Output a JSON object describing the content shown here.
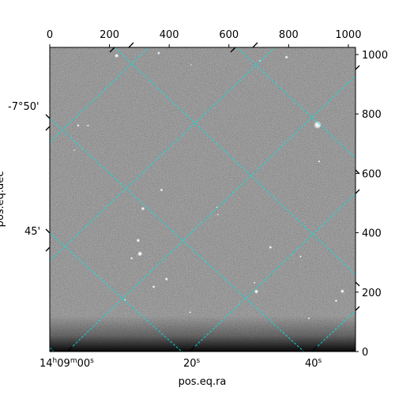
{
  "chart_data": {
    "type": "image",
    "colormap": "gray",
    "pixel_xlim": [
      0,
      1024
    ],
    "pixel_ylim": [
      0,
      1024
    ],
    "top_x_ticks": [
      0,
      200,
      400,
      600,
      800,
      1000
    ],
    "right_y_ticks": [
      0,
      200,
      400,
      600,
      800,
      1000
    ],
    "ra_tick_labels": [
      {
        "parts": [
          "14",
          "h",
          "09",
          "m",
          "00",
          "s"
        ]
      },
      {
        "parts": [
          "20",
          "s"
        ]
      },
      {
        "parts": [
          "40",
          "s"
        ]
      }
    ],
    "dec_tick_labels": [
      "-7°50'",
      "45'"
    ],
    "xlabel": "pos.eq.ra",
    "ylabel": "pos.eq.dec",
    "grid": true,
    "grid_color": "#00ffff",
    "stars": [
      {
        "x": 224,
        "y": 996,
        "r": 2.6
      },
      {
        "x": 365,
        "y": 1005,
        "r": 1.8
      },
      {
        "x": 793,
        "y": 991,
        "r": 2.0
      },
      {
        "x": 704,
        "y": 979,
        "r": 1.3
      },
      {
        "x": 473,
        "y": 965,
        "r": 1.0
      },
      {
        "x": 897,
        "y": 763,
        "r": 4.8
      },
      {
        "x": 902,
        "y": 640,
        "r": 1.4
      },
      {
        "x": 95,
        "y": 761,
        "r": 1.6
      },
      {
        "x": 128,
        "y": 761,
        "r": 1.4
      },
      {
        "x": 82,
        "y": 678,
        "r": 1.0
      },
      {
        "x": 374,
        "y": 544,
        "r": 1.8
      },
      {
        "x": 312,
        "y": 481,
        "r": 2.2
      },
      {
        "x": 296,
        "y": 374,
        "r": 2.3
      },
      {
        "x": 302,
        "y": 329,
        "r": 3.1
      },
      {
        "x": 274,
        "y": 314,
        "r": 1.6
      },
      {
        "x": 563,
        "y": 461,
        "r": 1.2
      },
      {
        "x": 739,
        "y": 351,
        "r": 1.9
      },
      {
        "x": 840,
        "y": 320,
        "r": 1.3
      },
      {
        "x": 391,
        "y": 244,
        "r": 2.0
      },
      {
        "x": 348,
        "y": 218,
        "r": 1.8
      },
      {
        "x": 692,
        "y": 202,
        "r": 2.6
      },
      {
        "x": 686,
        "y": 232,
        "r": 1.2
      },
      {
        "x": 980,
        "y": 203,
        "r": 2.4
      },
      {
        "x": 959,
        "y": 171,
        "r": 1.6
      },
      {
        "x": 252,
        "y": 174,
        "r": 1.4
      },
      {
        "x": 470,
        "y": 132,
        "r": 1.3
      },
      {
        "x": 868,
        "y": 112,
        "r": 1.3
      },
      {
        "x": 560,
        "y": 486,
        "r": 1.0
      }
    ]
  }
}
